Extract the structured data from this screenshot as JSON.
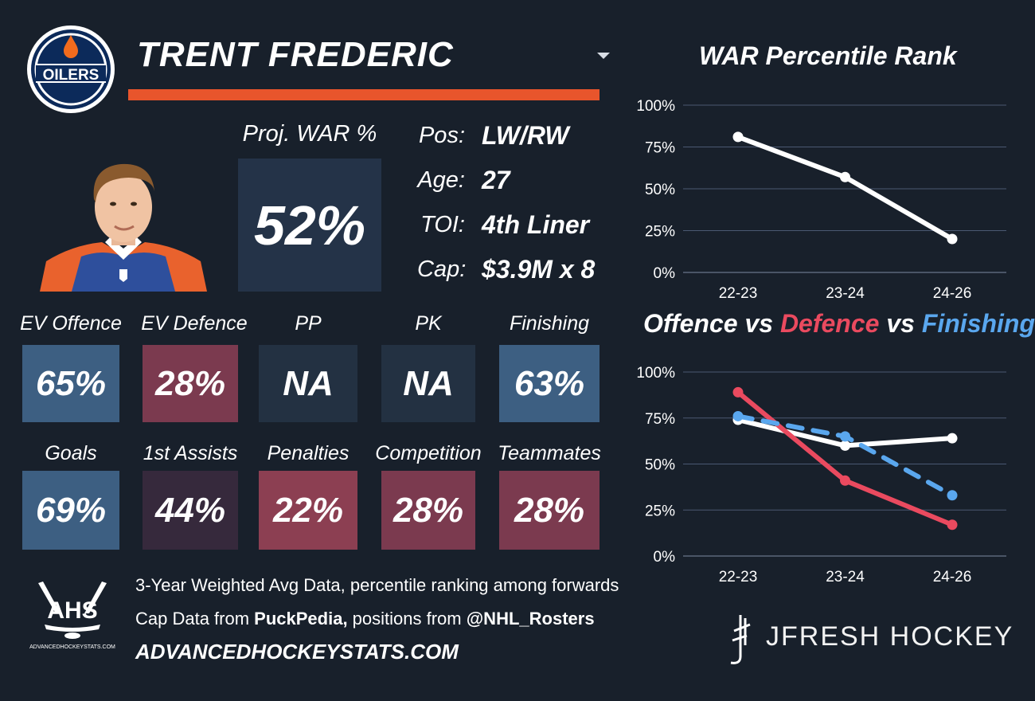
{
  "team": {
    "logo_text": "OILERS"
  },
  "player": {
    "name": "TRENT FREDERIC",
    "proj_war_label": "Proj. WAR %",
    "proj_war_value": "52%",
    "info": [
      {
        "label": "Pos:",
        "value": "LW/RW"
      },
      {
        "label": "Age:",
        "value": "27"
      },
      {
        "label": "TOI:",
        "value": "4th Liner"
      },
      {
        "label": "Cap:",
        "value": "$3.9M x 8"
      }
    ]
  },
  "stats_row1": [
    {
      "label": "EV Offence",
      "value": "65%",
      "color": "#3d5f82"
    },
    {
      "label": "EV Defence",
      "value": "28%",
      "color": "#7b3a4f"
    },
    {
      "label": "PP",
      "value": "NA",
      "color": "#233142"
    },
    {
      "label": "PK",
      "value": "NA",
      "color": "#233142"
    },
    {
      "label": "Finishing",
      "value": "63%",
      "color": "#3d5f82"
    }
  ],
  "stats_row2": [
    {
      "label": "Goals",
      "value": "69%",
      "color": "#3d5f82"
    },
    {
      "label": "1st Assists",
      "value": "44%",
      "color": "#36293c"
    },
    {
      "label": "Penalties",
      "value": "22%",
      "color": "#8c3f52"
    },
    {
      "label": "Competition",
      "value": "28%",
      "color": "#7b3a4f"
    },
    {
      "label": "Teammates",
      "value": "28%",
      "color": "#7b3a4f"
    }
  ],
  "footer": {
    "logo_text": "AHS",
    "logo_subtext": "ADVANCEDHOCKEYSTATS.COM",
    "line1": "3-Year Weighted Avg Data, percentile ranking among forwards",
    "line2_prefix": "Cap Data from ",
    "line2_source": "PuckPedia,",
    "line2_mid": " positions from ",
    "line2_handle": "@NHL_Rosters",
    "website": "ADVANCEDHOCKEYSTATS.COM",
    "brand": "JFRESH HOCKEY"
  },
  "colors": {
    "offence": "#ffffff",
    "defence": "#ea4a5f",
    "finishing": "#5aa7ee",
    "accent": "#e8552c"
  },
  "chart_data": [
    {
      "type": "line",
      "title": "WAR Percentile Rank",
      "categories": [
        "22-23",
        "23-24",
        "24-26"
      ],
      "ylim": [
        0,
        100
      ],
      "yticks": [
        "0%",
        "25%",
        "50%",
        "75%",
        "100%"
      ],
      "grid": true,
      "series": [
        {
          "values": [
            81,
            57,
            20
          ],
          "color": "#ffffff"
        }
      ]
    },
    {
      "type": "line",
      "title_parts": [
        {
          "text": "Offence",
          "color": "#ffffff"
        },
        {
          "text": " vs ",
          "color": "#ffffff"
        },
        {
          "text": "Defence",
          "color": "#ea4a5f"
        },
        {
          "text": " vs ",
          "color": "#ffffff"
        },
        {
          "text": "Finishing",
          "color": "#5aa7ee"
        }
      ],
      "categories": [
        "22-23",
        "23-24",
        "24-26"
      ],
      "ylim": [
        0,
        100
      ],
      "yticks": [
        "0%",
        "25%",
        "50%",
        "75%",
        "100%"
      ],
      "grid": true,
      "series": [
        {
          "name": "Offence",
          "values": [
            74,
            60,
            64
          ],
          "color": "#ffffff",
          "style": "solid"
        },
        {
          "name": "Defence",
          "values": [
            89,
            41,
            17
          ],
          "color": "#ea4a5f",
          "style": "solid"
        },
        {
          "name": "Finishing",
          "values": [
            76,
            65,
            33
          ],
          "color": "#5aa7ee",
          "style": "dashed"
        }
      ]
    }
  ]
}
